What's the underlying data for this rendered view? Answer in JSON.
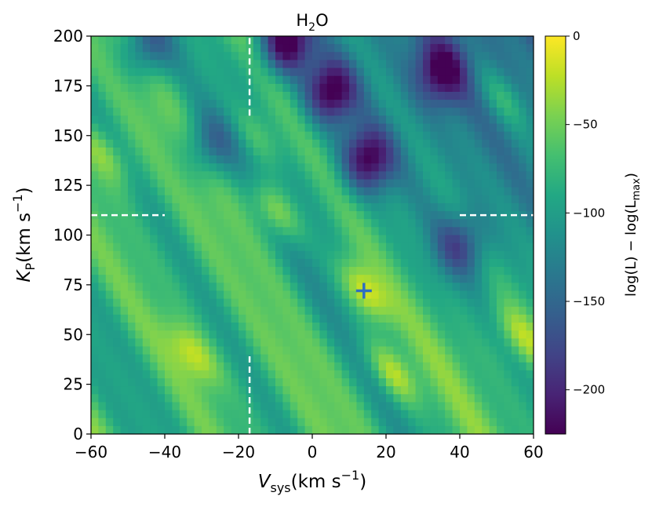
{
  "chart_data": {
    "type": "heatmap",
    "title": "H2O",
    "title_main": "H",
    "title_sub": "2",
    "title_tail": "O",
    "xlabel": "V_sys(km s^-1)",
    "xlabel_main": "V",
    "xlabel_sub": "sys",
    "xlabel_units": "(km s",
    "xlabel_exp": "−1",
    "xlabel_close": ")",
    "ylabel": "K_P(km s^-1)",
    "ylabel_main": "K",
    "ylabel_sub": "P",
    "ylabel_units": "(km s",
    "ylabel_exp": "−1",
    "ylabel_close": ")",
    "xlim": [
      -60,
      60
    ],
    "ylim": [
      0,
      200
    ],
    "xticks": [
      -60,
      -40,
      -20,
      0,
      20,
      40,
      60
    ],
    "xtick_labels": [
      "−60",
      "−40",
      "−20",
      "0",
      "20",
      "40",
      "60"
    ],
    "yticks": [
      0,
      25,
      50,
      75,
      100,
      125,
      150,
      175,
      200
    ],
    "ytick_labels": [
      "0",
      "25",
      "50",
      "75",
      "100",
      "125",
      "150",
      "175",
      "200"
    ],
    "colorbar": {
      "label": "log(L) − log(L_max)",
      "label_text": "log(L) − log(L",
      "label_sub": "max",
      "label_close": ")",
      "range": [
        -225,
        0
      ],
      "ticks": [
        0,
        -50,
        -100,
        -150,
        -200
      ],
      "tick_labels": [
        "0",
        "−50",
        "−100",
        "−150",
        "−200"
      ],
      "colormap": "viridis"
    },
    "best_fit_marker": {
      "x": 14,
      "y": 72,
      "color": "#2f6ec0",
      "symbol": "+"
    },
    "dashed_lines": {
      "vertical_x": -17,
      "vertical_segments": [
        [
          160,
          200
        ],
        [
          0,
          40
        ]
      ],
      "horizontal_y": 110,
      "horizontal_segments": [
        [
          -60,
          -40
        ],
        [
          40,
          60
        ]
      ],
      "color": "#ffffff"
    },
    "heatmap_features": {
      "stripe_slope_kp_per_vsys": -3.1,
      "dark_minima": [
        {
          "x": -7,
          "y": 197,
          "value": -220
        },
        {
          "x": 5,
          "y": 172,
          "value": -205
        },
        {
          "x": 15,
          "y": 138,
          "value": -200
        },
        {
          "x": 35,
          "y": 182,
          "value": -175
        },
        {
          "x": -45,
          "y": 195,
          "value": -150
        },
        {
          "x": -28,
          "y": 145,
          "value": -135
        },
        {
          "x": 40,
          "y": 95,
          "value": -150
        }
      ],
      "bright_maxima": [
        {
          "x": -10,
          "y": 112,
          "value": -5
        },
        {
          "x": 22,
          "y": 30,
          "value": -10
        },
        {
          "x": 14,
          "y": 72,
          "value": 0
        },
        {
          "x": -56,
          "y": 140,
          "value": -30
        },
        {
          "x": 52,
          "y": 168,
          "value": -30
        },
        {
          "x": 56,
          "y": 50,
          "value": -25
        },
        {
          "x": -15,
          "y": 150,
          "value": -40
        },
        {
          "x": -32,
          "y": 40,
          "value": -20
        }
      ]
    }
  }
}
